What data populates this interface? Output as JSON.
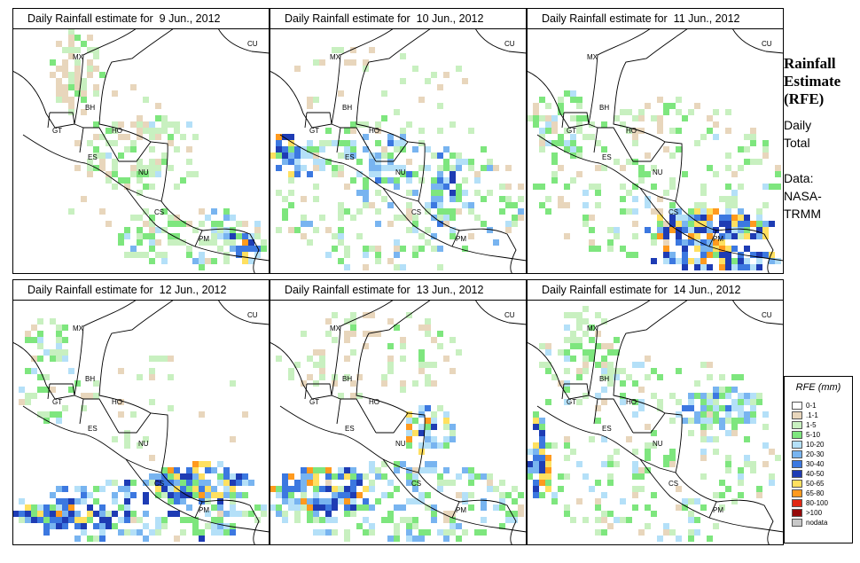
{
  "panels": [
    {
      "title": "Daily Rainfall estimate for  9 Jun., 2012",
      "rain": [
        {
          "kind": "dots",
          "cx": 75,
          "cy": 52,
          "rx": 28,
          "ry": 48,
          "n": 70,
          "w": [
            0,
            4,
            2,
            1,
            0,
            0,
            0,
            0,
            0,
            0,
            0
          ]
        },
        {
          "kind": "dots",
          "cx": 150,
          "cy": 140,
          "rx": 70,
          "ry": 45,
          "n": 110,
          "w": [
            0,
            2,
            5,
            2,
            1,
            0,
            0,
            0,
            0,
            0,
            0
          ]
        },
        {
          "kind": "dots",
          "cx": 200,
          "cy": 235,
          "rx": 85,
          "ry": 35,
          "n": 110,
          "w": [
            0,
            2,
            4,
            3,
            2,
            1,
            0,
            0,
            0,
            0,
            0
          ]
        },
        {
          "kind": "dots",
          "cx": 265,
          "cy": 245,
          "rx": 22,
          "ry": 15,
          "n": 55,
          "w": [
            0,
            0,
            1,
            2,
            3,
            3,
            2,
            2,
            2,
            1,
            0
          ]
        },
        {
          "kind": "dots",
          "cx": 120,
          "cy": 150,
          "rx": 80,
          "ry": 90,
          "n": 60,
          "w": [
            4,
            2,
            2,
            0,
            0,
            0,
            0,
            0,
            0,
            0,
            0
          ]
        }
      ]
    },
    {
      "title": "Daily Rainfall estimate for  10 Jun., 2012",
      "rain": [
        {
          "kind": "dots",
          "cx": 145,
          "cy": 190,
          "rx": 145,
          "ry": 90,
          "n": 240,
          "w": [
            0,
            2,
            5,
            3,
            1,
            1,
            0,
            0,
            0,
            0,
            0
          ]
        },
        {
          "kind": "dots",
          "cx": 20,
          "cy": 145,
          "rx": 18,
          "ry": 25,
          "n": 40,
          "w": [
            0,
            0,
            0,
            1,
            2,
            3,
            2,
            2,
            2,
            2,
            0
          ]
        },
        {
          "kind": "dots",
          "cx": 120,
          "cy": 150,
          "rx": 100,
          "ry": 25,
          "n": 80,
          "w": [
            0,
            0,
            1,
            2,
            4,
            2,
            1,
            0,
            0,
            0,
            0
          ]
        },
        {
          "kind": "dots",
          "cx": 200,
          "cy": 190,
          "rx": 20,
          "ry": 30,
          "n": 40,
          "w": [
            0,
            0,
            1,
            2,
            3,
            2,
            1,
            1,
            0,
            0,
            0
          ]
        },
        {
          "kind": "dots",
          "cx": 120,
          "cy": 60,
          "rx": 100,
          "ry": 40,
          "n": 40,
          "w": [
            3,
            2,
            2,
            0,
            0,
            0,
            0,
            0,
            0,
            0,
            0
          ]
        }
      ]
    },
    {
      "title": "Daily Rainfall estimate for  11 Jun., 2012",
      "rain": [
        {
          "kind": "dots",
          "cx": 145,
          "cy": 170,
          "rx": 145,
          "ry": 90,
          "n": 200,
          "w": [
            0,
            3,
            5,
            3,
            1,
            0,
            0,
            0,
            0,
            0,
            0
          ]
        },
        {
          "kind": "dots",
          "cx": 210,
          "cy": 225,
          "rx": 75,
          "ry": 20,
          "n": 120,
          "w": [
            0,
            0,
            0,
            1,
            2,
            2,
            2,
            3,
            3,
            2,
            0
          ]
        },
        {
          "kind": "dots",
          "cx": 215,
          "cy": 260,
          "rx": 75,
          "ry": 15,
          "n": 90,
          "w": [
            0,
            0,
            0,
            1,
            1,
            2,
            2,
            3,
            2,
            1,
            0
          ]
        },
        {
          "kind": "dots",
          "cx": 40,
          "cy": 110,
          "rx": 35,
          "ry": 40,
          "n": 50,
          "w": [
            0,
            1,
            3,
            2,
            2,
            0,
            0,
            0,
            0,
            0,
            0
          ]
        }
      ]
    },
    {
      "title": "Daily Rainfall estimate for  12 Jun., 2012",
      "rain": [
        {
          "kind": "dots",
          "cx": 145,
          "cy": 240,
          "rx": 145,
          "ry": 35,
          "n": 220,
          "w": [
            0,
            1,
            2,
            3,
            3,
            3,
            1,
            1,
            0,
            0,
            0
          ]
        },
        {
          "kind": "dots",
          "cx": 210,
          "cy": 205,
          "rx": 60,
          "ry": 18,
          "n": 110,
          "w": [
            0,
            0,
            0,
            1,
            1,
            2,
            3,
            3,
            3,
            2,
            0
          ]
        },
        {
          "kind": "dots",
          "cx": 70,
          "cy": 245,
          "rx": 65,
          "ry": 15,
          "n": 80,
          "w": [
            0,
            0,
            0,
            1,
            1,
            2,
            3,
            3,
            2,
            1,
            0
          ]
        },
        {
          "kind": "dots",
          "cx": 40,
          "cy": 80,
          "rx": 35,
          "ry": 60,
          "n": 60,
          "w": [
            0,
            2,
            3,
            3,
            1,
            0,
            0,
            0,
            0,
            0,
            0
          ]
        },
        {
          "kind": "dots",
          "cx": 180,
          "cy": 120,
          "rx": 100,
          "ry": 60,
          "n": 60,
          "w": [
            3,
            2,
            2,
            0,
            0,
            0,
            0,
            0,
            0,
            0,
            0
          ]
        }
      ]
    },
    {
      "title": "Daily Rainfall estimate for  13 Jun., 2012",
      "rain": [
        {
          "kind": "dots",
          "cx": 145,
          "cy": 230,
          "rx": 145,
          "ry": 45,
          "n": 220,
          "w": [
            0,
            1,
            3,
            4,
            3,
            2,
            0,
            0,
            0,
            0,
            0
          ]
        },
        {
          "kind": "dots",
          "cx": 60,
          "cy": 215,
          "rx": 55,
          "ry": 25,
          "n": 110,
          "w": [
            0,
            0,
            0,
            1,
            1,
            2,
            3,
            4,
            3,
            2,
            0
          ]
        },
        {
          "kind": "dots",
          "cx": 180,
          "cy": 145,
          "rx": 30,
          "ry": 25,
          "n": 50,
          "w": [
            0,
            0,
            1,
            2,
            3,
            2,
            1,
            1,
            1,
            1,
            0
          ]
        },
        {
          "kind": "dots",
          "cx": 120,
          "cy": 60,
          "rx": 110,
          "ry": 50,
          "n": 100,
          "w": [
            2,
            3,
            4,
            1,
            0,
            0,
            0,
            0,
            0,
            0,
            0
          ]
        }
      ]
    },
    {
      "title": "Daily Rainfall estimate for  14 Jun., 2012",
      "rain": [
        {
          "kind": "dots",
          "cx": 145,
          "cy": 170,
          "rx": 145,
          "ry": 110,
          "n": 230,
          "w": [
            0,
            2,
            5,
            3,
            2,
            0,
            0,
            0,
            0,
            0,
            0
          ]
        },
        {
          "kind": "dots",
          "cx": 15,
          "cy": 180,
          "rx": 12,
          "ry": 45,
          "n": 60,
          "w": [
            0,
            0,
            0,
            1,
            1,
            2,
            2,
            3,
            3,
            2,
            0
          ]
        },
        {
          "kind": "dots",
          "cx": 220,
          "cy": 125,
          "rx": 50,
          "ry": 25,
          "n": 70,
          "w": [
            0,
            0,
            1,
            2,
            4,
            3,
            1,
            0,
            0,
            0,
            0
          ]
        },
        {
          "kind": "dots",
          "cx": 60,
          "cy": 60,
          "rx": 45,
          "ry": 50,
          "n": 60,
          "w": [
            0,
            1,
            3,
            3,
            1,
            0,
            0,
            0,
            0,
            0,
            0
          ]
        }
      ]
    }
  ],
  "labels": [
    {
      "text": "MX",
      "x": 68,
      "y": 35
    },
    {
      "text": "CU",
      "x": 265,
      "y": 20
    },
    {
      "text": "BH",
      "x": 82,
      "y": 92
    },
    {
      "text": "GT",
      "x": 45,
      "y": 118
    },
    {
      "text": "HO",
      "x": 112,
      "y": 118
    },
    {
      "text": "ES",
      "x": 85,
      "y": 148
    },
    {
      "text": "NU",
      "x": 142,
      "y": 165
    },
    {
      "text": "CS",
      "x": 160,
      "y": 210
    },
    {
      "text": "PM",
      "x": 210,
      "y": 240
    }
  ],
  "sidebar": {
    "heading": [
      "Rainfall",
      "Estimate",
      "(RFE)"
    ],
    "subtitle": [
      "Daily",
      "Total"
    ],
    "source": [
      "Data:",
      "NASA-",
      "TRMM"
    ]
  },
  "legend": {
    "title": "RFE (mm)",
    "items": [
      {
        "label": "0-1",
        "color": "#ffffff"
      },
      {
        "label": ".1-1",
        "color": "#e8d6bc"
      },
      {
        "label": "1-5",
        "color": "#c8f0c0"
      },
      {
        "label": "5-10",
        "color": "#7ee67e"
      },
      {
        "label": "10-20",
        "color": "#b4e0f8"
      },
      {
        "label": "20-30",
        "color": "#78b4f0"
      },
      {
        "label": "30-40",
        "color": "#3c78e0"
      },
      {
        "label": "40-50",
        "color": "#1e3cb4"
      },
      {
        "label": "50-65",
        "color": "#ffe060"
      },
      {
        "label": "65-80",
        "color": "#ff9a1e"
      },
      {
        "label": "80-100",
        "color": "#e02814"
      },
      {
        "label": ">100",
        "color": "#960a0a"
      },
      {
        "label": "nodata",
        "color": "#c8c8c8"
      }
    ]
  }
}
